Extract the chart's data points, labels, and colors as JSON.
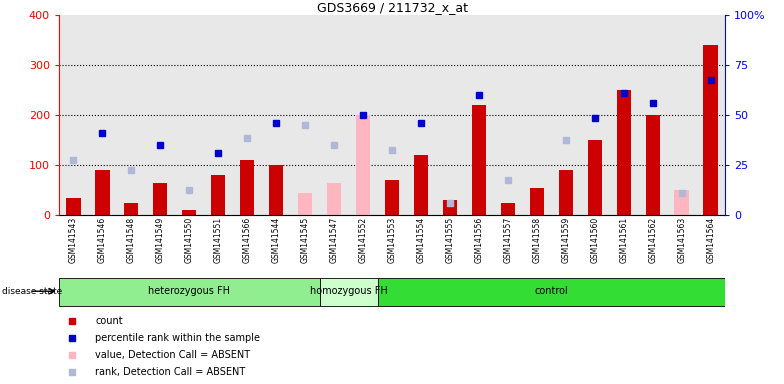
{
  "title": "GDS3669 / 211732_x_at",
  "samples": [
    "GSM141543",
    "GSM141546",
    "GSM141548",
    "GSM141549",
    "GSM141550",
    "GSM141551",
    "GSM141566",
    "GSM141544",
    "GSM141545",
    "GSM141547",
    "GSM141552",
    "GSM141553",
    "GSM141554",
    "GSM141555",
    "GSM141556",
    "GSM141557",
    "GSM141558",
    "GSM141559",
    "GSM141560",
    "GSM141561",
    "GSM141562",
    "GSM141563",
    "GSM141564"
  ],
  "groups": [
    {
      "label": "heterozygous FH",
      "start": 0,
      "end": 9
    },
    {
      "label": "homozygous FH",
      "start": 9,
      "end": 11
    },
    {
      "label": "control",
      "start": 11,
      "end": 23
    }
  ],
  "group_colors": {
    "heterozygous FH": "#90EE90",
    "homozygous FH": "#CCFFCC",
    "control": "#33DD33"
  },
  "bar_present": [
    35,
    90,
    25,
    65,
    10,
    80,
    110,
    100,
    null,
    null,
    null,
    70,
    120,
    30,
    220,
    25,
    55,
    90,
    150,
    250,
    200,
    5,
    340
  ],
  "bar_absent": [
    null,
    null,
    null,
    null,
    null,
    null,
    null,
    null,
    45,
    65,
    200,
    null,
    null,
    null,
    null,
    null,
    null,
    null,
    null,
    null,
    null,
    50,
    null
  ],
  "rank_present": [
    null,
    165,
    null,
    140,
    null,
    125,
    null,
    185,
    null,
    null,
    200,
    null,
    185,
    null,
    240,
    null,
    null,
    null,
    195,
    245,
    225,
    null,
    270
  ],
  "rank_absent": [
    110,
    null,
    90,
    null,
    50,
    null,
    155,
    null,
    180,
    140,
    null,
    130,
    null,
    25,
    null,
    70,
    null,
    150,
    null,
    null,
    null,
    45,
    null
  ],
  "bar_color_present": "#CC0000",
  "bar_color_absent": "#FFB6C1",
  "rank_color_present": "#0000CC",
  "rank_color_absent": "#B0B8D8",
  "ylim_left": [
    0,
    400
  ],
  "ylim_right": [
    0,
    100
  ],
  "yticks_left": [
    0,
    100,
    200,
    300,
    400
  ],
  "yticks_right": [
    0,
    25,
    50,
    75,
    100
  ],
  "gridlines": [
    100,
    200,
    300
  ],
  "bar_width": 0.5,
  "marker_size": 5
}
